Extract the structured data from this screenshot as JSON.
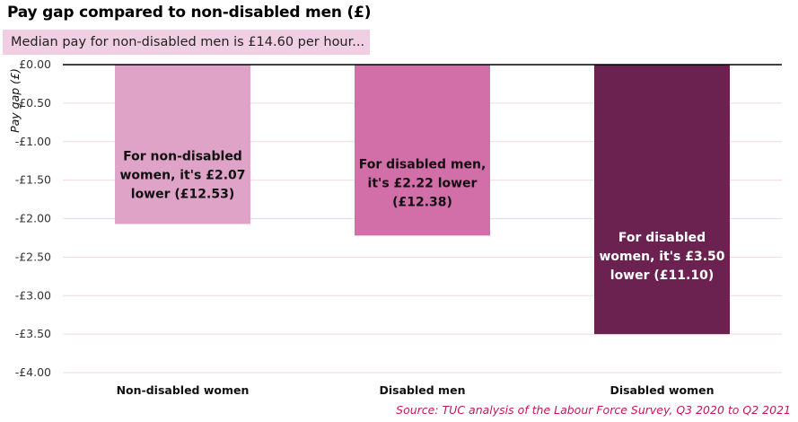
{
  "chart_data": {
    "type": "bar",
    "title": "Pay gap compared to non-disabled men (£)",
    "subtitle": "Median pay for non-disabled men is £14.60  per hour...",
    "ylabel": "Pay gap (£)",
    "xlabel": "",
    "ylim": [
      -4.0,
      0.0
    ],
    "yticks": [
      0,
      -0.5,
      -1.0,
      -1.5,
      -2.0,
      -2.5,
      -3.0,
      -3.5,
      -4.0
    ],
    "ytick_labels": [
      "£0.00",
      "-£0.50",
      "-£1.00",
      "-£1.50",
      "-£2.00",
      "-£2.50",
      "-£3.00",
      "-£3.50",
      "-£4.00"
    ],
    "categories": [
      "Non-disabled women",
      "Disabled men",
      "Disabled women"
    ],
    "values": [
      -2.07,
      -2.22,
      -3.5
    ],
    "colors": [
      "#dfa3c7",
      "#d26ea8",
      "#6b2250"
    ],
    "label_colors": [
      "#111111",
      "#111111",
      "#ffffff"
    ],
    "data_labels": [
      [
        "For non-disabled",
        "women, it's £2.07",
        "lower (£12.53)"
      ],
      [
        "For disabled men,",
        "it's £2.22 lower",
        "(£12.38)"
      ],
      [
        "For disabled",
        "women, it's £3.50",
        "lower (£11.10)"
      ]
    ],
    "grid": true,
    "legend": "none"
  },
  "source": "Source: TUC analysis of the Labour Force Survey, Q3 2020 to Q2 2021"
}
